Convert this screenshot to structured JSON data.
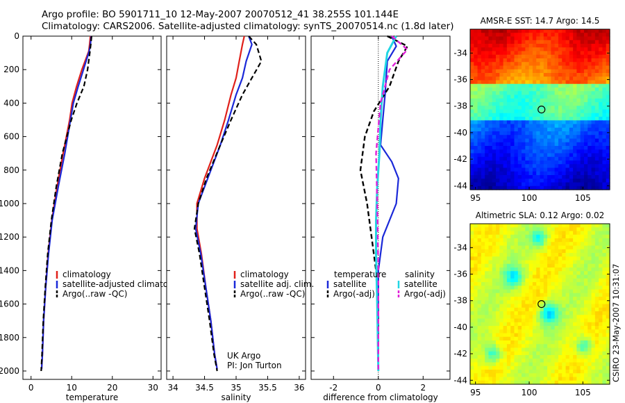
{
  "title_line1": "Argo profile: BO 5901711_10 12-May-2007 20070512_41 38.255S 101.144E",
  "title_line2": "Climatology: CARS2006. Satellite-adjusted climatology: synTS_20070514.nc (1.8d later)",
  "side_label": "CSIRO 23-May-2007 10:31:07",
  "colors": {
    "climatology": "#e0201a",
    "satellite": "#1a28d8",
    "argo": "#000000",
    "sat_sal": "#22d6e4",
    "argo_sal": "#e020d8"
  },
  "chart_data": [
    {
      "type": "line",
      "xlabel": "temperature",
      "xlim": [
        -2,
        32
      ],
      "xticks": [
        0,
        10,
        20,
        30
      ],
      "ylim": [
        2050,
        0
      ],
      "yticks": [
        0,
        200,
        400,
        600,
        800,
        1000,
        1200,
        1400,
        1600,
        1800,
        2000
      ],
      "series": [
        {
          "name": "climatology",
          "x": [
            14.6,
            14.4,
            14.2,
            12.5,
            11.2,
            10.1,
            9.5,
            7.9,
            6.4,
            5.1,
            4.2,
            3.6,
            3.1,
            2.8,
            2.6
          ],
          "y": [
            0,
            50,
            90,
            200,
            300,
            400,
            500,
            700,
            900,
            1100,
            1300,
            1500,
            1700,
            1900,
            1990
          ]
        },
        {
          "name": "satellite-adjusted climatology",
          "x": [
            14.8,
            14.6,
            14.3,
            12.9,
            11.6,
            10.4,
            9.7,
            8.3,
            6.7,
            5.2,
            4.3,
            3.6,
            3.1,
            2.8,
            2.6
          ],
          "y": [
            0,
            50,
            90,
            200,
            300,
            400,
            500,
            700,
            900,
            1100,
            1300,
            1500,
            1700,
            1900,
            1990
          ]
        },
        {
          "name": "Argo(..raw -QC)",
          "x": [
            14.9,
            14.7,
            14.5,
            13.9,
            13.0,
            11.3,
            9.9,
            7.7,
            6.2,
            5.0,
            4.1,
            3.5,
            3.0,
            2.7,
            2.5
          ],
          "y": [
            0,
            50,
            90,
            200,
            300,
            400,
            500,
            700,
            900,
            1100,
            1300,
            1500,
            1700,
            1900,
            2000
          ]
        }
      ]
    },
    {
      "type": "line",
      "xlabel": "salinity",
      "xlim": [
        33.9,
        36.1
      ],
      "xticks": [
        34,
        34.5,
        35,
        35.5,
        36
      ],
      "xtick_labels": [
        "34",
        "34.5",
        "35",
        "35.5",
        "36"
      ],
      "ylim": [
        2050,
        0
      ],
      "annotation": [
        "UK Argo",
        "PI: Jon Turton"
      ],
      "series": [
        {
          "name": "climatology",
          "x": [
            35.13,
            35.1,
            35.05,
            35.0,
            34.92,
            34.82,
            34.7,
            34.5,
            34.38,
            34.38,
            34.45,
            34.52,
            34.6,
            34.66,
            34.7
          ],
          "y": [
            0,
            50,
            150,
            250,
            350,
            500,
            650,
            850,
            1000,
            1150,
            1300,
            1500,
            1700,
            1900,
            1990
          ]
        },
        {
          "name": "satellite adj. clim.",
          "x": [
            35.2,
            35.25,
            35.16,
            35.1,
            35.0,
            34.88,
            34.75,
            34.55,
            34.4,
            34.36,
            34.44,
            34.52,
            34.6,
            34.66,
            34.7
          ],
          "y": [
            0,
            50,
            150,
            250,
            350,
            500,
            650,
            850,
            1000,
            1150,
            1300,
            1500,
            1700,
            1900,
            1990
          ]
        },
        {
          "name": "Argo(..raw -QC)",
          "x": [
            35.2,
            35.32,
            35.4,
            35.25,
            35.1,
            34.92,
            34.75,
            34.53,
            34.4,
            34.34,
            34.42,
            34.5,
            34.58,
            34.65,
            34.7
          ],
          "y": [
            0,
            50,
            150,
            250,
            350,
            500,
            650,
            850,
            1000,
            1150,
            1300,
            1500,
            1700,
            1900,
            2000
          ]
        }
      ]
    },
    {
      "type": "line",
      "xlabel": "difference from climatology",
      "xlim": [
        -3,
        3.2
      ],
      "xticks": [
        -2,
        0,
        2
      ],
      "ylim": [
        2050,
        0
      ],
      "legend_headers": [
        "temperature",
        "salinity"
      ],
      "series": [
        {
          "name": "satellite",
          "group": "temperature",
          "x": [
            0.6,
            0.8,
            0.4,
            0.3,
            0.2,
            0.1,
            0.6,
            0.9,
            0.8,
            0.2,
            0.0,
            0.0,
            0.0
          ],
          "y": [
            0,
            60,
            150,
            350,
            500,
            650,
            750,
            850,
            1000,
            1200,
            1400,
            1700,
            2000
          ]
        },
        {
          "name": "Argo(-adj)",
          "group": "temperature",
          "x": [
            0.4,
            1.3,
            0.9,
            0.5,
            -0.2,
            -0.6,
            -0.8,
            -0.5,
            -0.3,
            -0.1,
            0.0,
            0.0
          ],
          "y": [
            0,
            60,
            150,
            300,
            450,
            600,
            800,
            1000,
            1200,
            1400,
            1700,
            2000
          ]
        },
        {
          "name": "satellite",
          "group": "salinity",
          "x": [
            0.8,
            0.4,
            0.2,
            0.1,
            0.05,
            -0.05,
            -0.1,
            -0.1,
            -0.05,
            0.0
          ],
          "y": [
            0,
            100,
            300,
            500,
            700,
            900,
            1100,
            1300,
            1600,
            2000
          ]
        },
        {
          "name": "Argo(-adj)",
          "group": "salinity",
          "x": [
            0.6,
            1.3,
            0.5,
            0.1,
            -0.1,
            -0.05,
            0.0,
            0.0
          ],
          "y": [
            0,
            80,
            200,
            400,
            700,
            1000,
            1400,
            2000
          ]
        }
      ]
    },
    {
      "type": "heatmap",
      "title": "AMSR-E SST: 14.7 Argo: 14.5",
      "xlim": [
        94.5,
        107.5
      ],
      "xticks": [
        95,
        100,
        105
      ],
      "ylim": [
        -44.3,
        -32.2
      ],
      "yticks": [
        -34,
        -36,
        -38,
        -40,
        -42,
        -44
      ],
      "marker": {
        "lon": 101.144,
        "lat": -38.255
      }
    },
    {
      "type": "heatmap",
      "title": "Altimetric SLA: 0.12 Argo: 0.02",
      "xlim": [
        94.5,
        107.5
      ],
      "xticks": [
        95,
        100,
        105
      ],
      "ylim": [
        -44.3,
        -32.2
      ],
      "yticks": [
        -34,
        -36,
        -38,
        -40,
        -42,
        -44
      ],
      "marker": {
        "lon": 101.144,
        "lat": -38.255
      }
    }
  ]
}
